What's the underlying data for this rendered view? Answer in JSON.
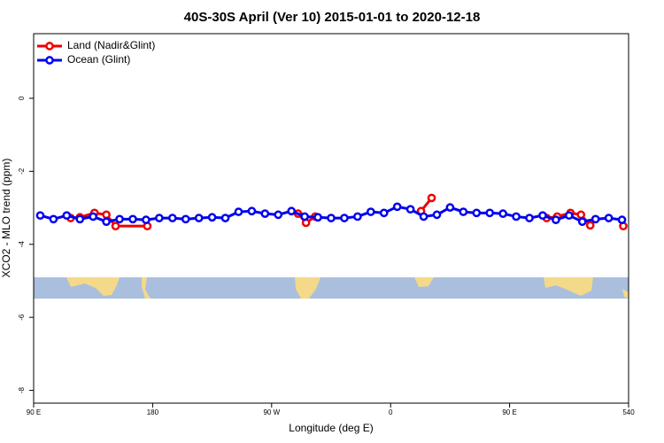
{
  "chart_data": {
    "type": "line",
    "title": "40S-30S April (Ver 10)   2015-01-01 to 2020-12-18",
    "x_label": "Longitude (deg E)",
    "y_label": "XCO2 - MLO trend (ppm)",
    "xlim": [
      90,
      540
    ],
    "ylim": [
      -8.35,
      1.77
    ],
    "xticks": [
      {
        "value": 90,
        "label": "90 E"
      },
      180,
      {
        "value": 270,
        "label": "90 W"
      },
      {
        "value": 360,
        "label": "0"
      },
      {
        "value": 450,
        "label": "90 E"
      },
      540
    ],
    "yticks": [
      0,
      -2,
      -4,
      -6,
      -8
    ],
    "legend": "top-left",
    "grid": false,
    "series": [
      {
        "name": "Land (Nadir&Glint)",
        "color": "#ee0000",
        "x": [
          118,
          125,
          136,
          145,
          152,
          176,
          null,
          290,
          296,
          303,
          null,
          383,
          391,
          null,
          478,
          486,
          496,
          504,
          511,
          null,
          536
        ],
        "values": [
          -3.28,
          -3.26,
          -3.14,
          -3.19,
          -3.5,
          -3.5,
          null,
          -3.16,
          -3.41,
          -3.24,
          null,
          -3.09,
          -2.73,
          null,
          -3.28,
          -3.24,
          -3.14,
          -3.19,
          -3.48,
          null,
          -3.5
        ]
      },
      {
        "name": "Ocean (Glint)",
        "color": "#0000ee",
        "x": [
          95,
          105,
          115,
          125,
          135,
          145,
          155,
          165,
          175,
          185,
          195,
          205,
          215,
          225,
          235,
          245,
          255,
          265,
          275,
          285,
          295,
          305,
          315,
          325,
          335,
          345,
          355,
          365,
          375,
          385,
          395,
          405,
          415,
          425,
          435,
          445,
          455,
          465,
          475,
          485,
          495,
          505,
          515,
          525,
          535
        ],
        "values": [
          -3.21,
          -3.31,
          -3.21,
          -3.31,
          -3.24,
          -3.38,
          -3.31,
          -3.31,
          -3.33,
          -3.28,
          -3.28,
          -3.31,
          -3.28,
          -3.26,
          -3.28,
          -3.11,
          -3.09,
          -3.16,
          -3.19,
          -3.09,
          -3.24,
          -3.26,
          -3.28,
          -3.28,
          -3.24,
          -3.11,
          -3.14,
          -2.97,
          -3.04,
          -3.24,
          -3.19,
          -2.99,
          -3.11,
          -3.14,
          -3.14,
          -3.16,
          -3.24,
          -3.28,
          -3.21,
          -3.33,
          -3.21,
          -3.38,
          -3.31,
          -3.28,
          -3.33
        ]
      }
    ]
  }
}
